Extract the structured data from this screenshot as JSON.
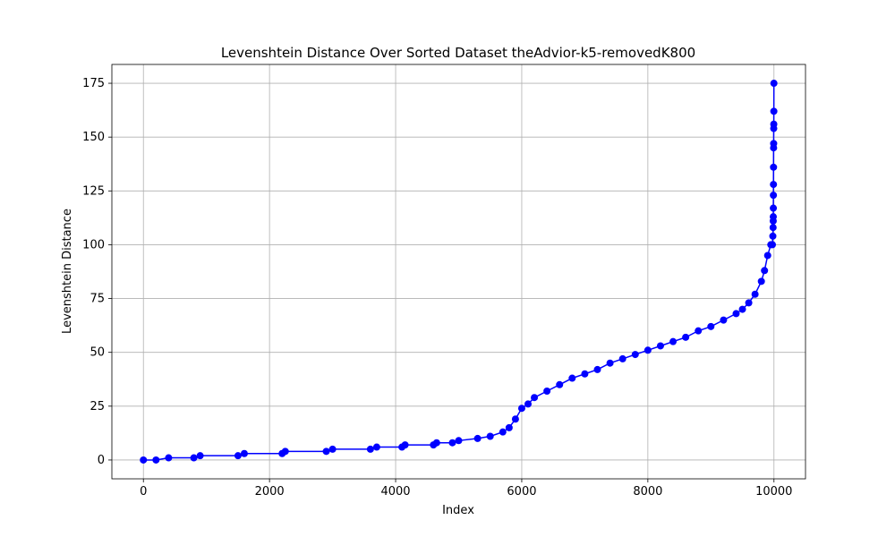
{
  "chart_data": {
    "type": "line",
    "title": "Levenshtein Distance Over Sorted Dataset theAdvior-k5-removedK800",
    "xlabel": "Index",
    "ylabel": "Levenshtein Distance",
    "x": [
      0,
      200,
      400,
      800,
      900,
      1500,
      1600,
      2200,
      2250,
      2900,
      3000,
      3600,
      3700,
      4100,
      4150,
      4600,
      4650,
      4900,
      5000,
      5300,
      5500,
      5700,
      5800,
      5900,
      6000,
      6100,
      6200,
      6400,
      6600,
      6800,
      7000,
      7200,
      7400,
      7600,
      7800,
      8000,
      8200,
      8400,
      8600,
      8800,
      9000,
      9200,
      9400,
      9500,
      9600,
      9700,
      9800,
      9850,
      9900,
      9950,
      9975,
      9982,
      9986,
      9988,
      9989,
      9990,
      9991,
      9992,
      9993,
      9994,
      9995,
      9996,
      9997,
      9998,
      9999
    ],
    "series": [
      {
        "name": "Levenshtein Distance",
        "color": "#0000ff",
        "values": [
          0,
          0,
          1,
          1,
          2,
          2,
          3,
          3,
          4,
          4,
          5,
          5,
          6,
          6,
          7,
          7,
          8,
          8,
          9,
          10,
          11,
          13,
          15,
          19,
          24,
          26,
          29,
          32,
          35,
          38,
          40,
          42,
          45,
          47,
          49,
          51,
          53,
          55,
          57,
          60,
          62,
          65,
          68,
          70,
          73,
          77,
          83,
          88,
          95,
          100,
          100,
          104,
          108,
          111,
          113,
          117,
          123,
          128,
          136,
          145,
          147,
          154,
          156,
          162,
          175
        ]
      }
    ],
    "xlim": [
      -500,
      10500
    ],
    "ylim": [
      -8.75,
      183.75
    ],
    "xticks": [
      0,
      2000,
      4000,
      6000,
      8000,
      10000
    ],
    "yticks": [
      0,
      25,
      50,
      75,
      100,
      125,
      150,
      175
    ],
    "grid": true
  }
}
